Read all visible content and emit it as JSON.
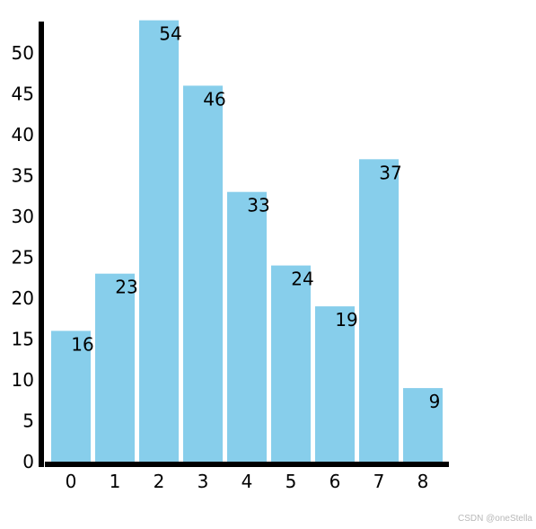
{
  "chart_data": {
    "type": "bar",
    "categories": [
      "0",
      "1",
      "2",
      "3",
      "4",
      "5",
      "6",
      "7",
      "8"
    ],
    "values": [
      16,
      23,
      54,
      46,
      33,
      24,
      19,
      37,
      9
    ],
    "data_labels": [
      "16",
      "23",
      "54",
      "46",
      "33",
      "24",
      "19",
      "37",
      "9"
    ],
    "y_ticks": [
      "0",
      "5",
      "10",
      "15",
      "20",
      "25",
      "30",
      "35",
      "40",
      "45",
      "50"
    ],
    "ylim": [
      0,
      54
    ],
    "grid": false,
    "bar_color": "#87ceeb",
    "axis_color": "#000000"
  },
  "watermark": "CSDN @oneStella"
}
